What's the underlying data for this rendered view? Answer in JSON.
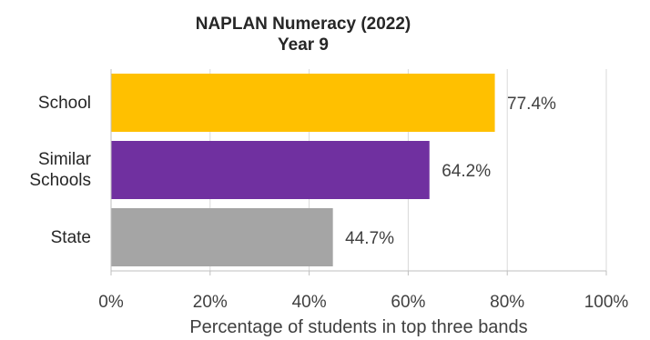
{
  "chart_data": {
    "type": "bar",
    "orientation": "horizontal",
    "title_lines": [
      "NAPLAN Numeracy (2022)",
      "Year 9"
    ],
    "categories": [
      {
        "lines": [
          "School"
        ],
        "value": 77.4,
        "label": "77.4%",
        "color": "#FFC000"
      },
      {
        "lines": [
          "Similar",
          "Schools"
        ],
        "value": 64.2,
        "label": "64.2%",
        "color": "#7030A0"
      },
      {
        "lines": [
          "State"
        ],
        "value": 44.7,
        "label": "44.7%",
        "color": "#A5A5A5"
      }
    ],
    "xlim": [
      0,
      100
    ],
    "x_ticks": [
      "0%",
      "20%",
      "40%",
      "60%",
      "80%",
      "100%"
    ],
    "xlabel": "Percentage of students in top three bands",
    "grid": "vertical"
  }
}
